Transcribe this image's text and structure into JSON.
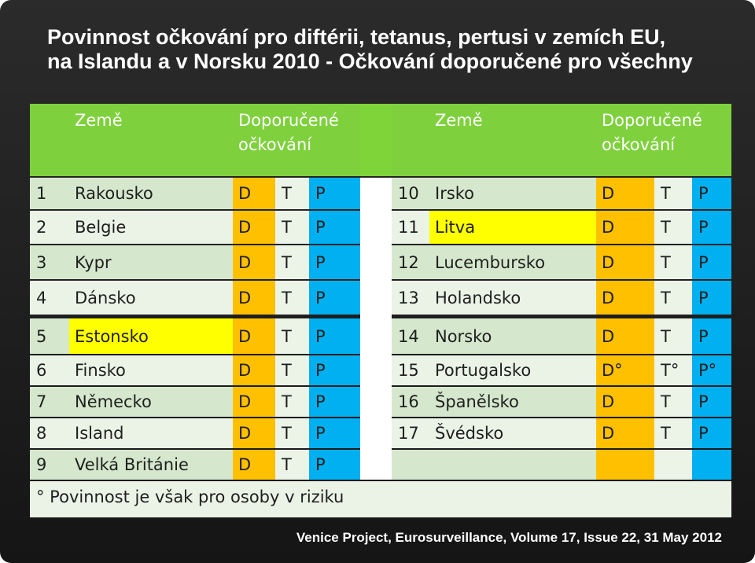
{
  "title": {
    "line1": "Povinnost očkování pro diftérii, tetanus, pertusi v zemích EU,",
    "line2": "na Islandu a v Norsku  2010 - Očkování doporučené pro všechny"
  },
  "table": {
    "header_country": "Země",
    "header_vacc_line1": "Doporučené",
    "header_vacc_line2": "očkování",
    "left_rows": [
      {
        "num": "1",
        "country": "Rakousko",
        "d": "D",
        "t": "T",
        "p": "P",
        "highlight": false
      },
      {
        "num": "2",
        "country": "Belgie",
        "d": "D",
        "t": "T",
        "p": "P",
        "highlight": false
      },
      {
        "num": "3",
        "country": "Kypr",
        "d": "D",
        "t": "T",
        "p": "P",
        "highlight": false
      },
      {
        "num": "4",
        "country": "Dánsko",
        "d": "D",
        "t": "T",
        "p": "P",
        "highlight": false
      },
      {
        "num": "5",
        "country": "Estonsko",
        "d": "D",
        "t": "T",
        "p": "P",
        "highlight": true
      },
      {
        "num": "6",
        "country": "Finsko",
        "d": "D",
        "t": "T",
        "p": "P",
        "highlight": false
      },
      {
        "num": "7",
        "country": "Německo",
        "d": "D",
        "t": "T",
        "p": "P",
        "highlight": false
      },
      {
        "num": "8",
        "country": "Island",
        "d": "D",
        "t": "T",
        "p": "P",
        "highlight": false
      },
      {
        "num": "9",
        "country": "Velká Británie",
        "d": "D",
        "t": "T",
        "p": "P",
        "highlight": false
      }
    ],
    "right_rows": [
      {
        "num": "10",
        "country": "Irsko",
        "d": "D",
        "t": "T",
        "p": "P",
        "highlight": false
      },
      {
        "num": "11",
        "country": "Litva",
        "d": "D",
        "t": "T",
        "p": "P",
        "highlight": true
      },
      {
        "num": "12",
        "country": "Lucembursko",
        "d": "D",
        "t": "T",
        "p": "P",
        "highlight": false
      },
      {
        "num": "13",
        "country": "Holandsko",
        "d": "D",
        "t": "T",
        "p": "P",
        "highlight": false
      },
      {
        "num": "14",
        "country": "Norsko",
        "d": "D",
        "t": "T",
        "p": "P",
        "highlight": false
      },
      {
        "num": "15",
        "country": "Portugalsko",
        "d": "D°",
        "t": "T°",
        "p": "P°",
        "highlight": false
      },
      {
        "num": "16",
        "country": "Španělsko",
        "d": "D",
        "t": "T",
        "p": "P",
        "highlight": false
      },
      {
        "num": "17",
        "country": "Švédsko",
        "d": "D",
        "t": "T",
        "p": "P",
        "highlight": false
      }
    ],
    "footnote": "° Povinnost je však pro osoby v riziku"
  },
  "source": "Venice Project, Eurosurveillance, Volume 17, Issue 22, 31 May 2012",
  "colors": {
    "header_green": "#7ed13c",
    "row_dark": "#d5e8cd",
    "row_light": "#ebf3e7",
    "highlight_yellow": "#ffff00",
    "d_orange": "#ffc000",
    "t_light": "#ecf4e8",
    "p_blue": "#00b0f0",
    "bg_dark": "#1e1e1e"
  }
}
